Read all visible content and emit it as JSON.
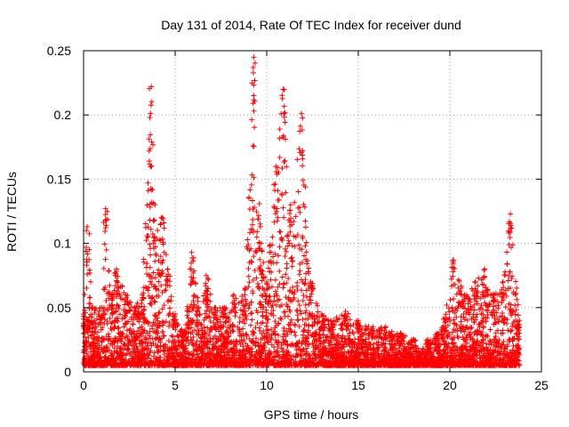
{
  "chart_data": {
    "type": "scatter",
    "title": "Day 131 of 2014, Rate Of TEC Index for receiver dund",
    "xlabel": "GPS time / hours",
    "ylabel": "ROTI / TECUs",
    "xlim": [
      0,
      25
    ],
    "ylim": [
      0,
      0.25
    ],
    "x_ticks": [
      0,
      5,
      10,
      15,
      20,
      25
    ],
    "x_tick_labels": [
      "0",
      "5",
      "10",
      "15",
      "20",
      "25"
    ],
    "y_ticks": [
      0,
      0.05,
      0.1,
      0.15,
      0.2,
      0.25
    ],
    "y_tick_labels": [
      "0",
      "0.05",
      "0.1",
      "0.15",
      "0.2",
      "0.25"
    ],
    "grid": true,
    "marker": "+",
    "color": "#ff0000",
    "data_range_x": [
      0,
      23.8
    ],
    "envelope": [
      {
        "x": 0.0,
        "y": 0.045
      },
      {
        "x": 0.2,
        "y": 0.113
      },
      {
        "x": 0.5,
        "y": 0.05
      },
      {
        "x": 1.0,
        "y": 0.05
      },
      {
        "x": 1.2,
        "y": 0.127
      },
      {
        "x": 1.5,
        "y": 0.06
      },
      {
        "x": 1.8,
        "y": 0.08
      },
      {
        "x": 2.3,
        "y": 0.06
      },
      {
        "x": 2.8,
        "y": 0.05
      },
      {
        "x": 3.2,
        "y": 0.06
      },
      {
        "x": 3.7,
        "y": 0.222
      },
      {
        "x": 3.9,
        "y": 0.13
      },
      {
        "x": 4.3,
        "y": 0.12
      },
      {
        "x": 4.6,
        "y": 0.08
      },
      {
        "x": 5.0,
        "y": 0.045
      },
      {
        "x": 5.5,
        "y": 0.03
      },
      {
        "x": 5.9,
        "y": 0.093
      },
      {
        "x": 6.3,
        "y": 0.05
      },
      {
        "x": 6.7,
        "y": 0.075
      },
      {
        "x": 7.2,
        "y": 0.05
      },
      {
        "x": 7.7,
        "y": 0.05
      },
      {
        "x": 8.2,
        "y": 0.06
      },
      {
        "x": 8.8,
        "y": 0.06
      },
      {
        "x": 9.3,
        "y": 0.245
      },
      {
        "x": 9.7,
        "y": 0.1
      },
      {
        "x": 10.0,
        "y": 0.07
      },
      {
        "x": 10.5,
        "y": 0.16
      },
      {
        "x": 10.9,
        "y": 0.22
      },
      {
        "x": 11.3,
        "y": 0.13
      },
      {
        "x": 11.9,
        "y": 0.201
      },
      {
        "x": 12.4,
        "y": 0.07
      },
      {
        "x": 13.0,
        "y": 0.045
      },
      {
        "x": 13.5,
        "y": 0.04
      },
      {
        "x": 14.3,
        "y": 0.047
      },
      {
        "x": 15.0,
        "y": 0.04
      },
      {
        "x": 15.8,
        "y": 0.035
      },
      {
        "x": 16.5,
        "y": 0.035
      },
      {
        "x": 17.3,
        "y": 0.03
      },
      {
        "x": 18.0,
        "y": 0.025
      },
      {
        "x": 18.4,
        "y": 0.015
      },
      {
        "x": 18.8,
        "y": 0.025
      },
      {
        "x": 19.3,
        "y": 0.03
      },
      {
        "x": 19.7,
        "y": 0.042
      },
      {
        "x": 20.2,
        "y": 0.087
      },
      {
        "x": 20.8,
        "y": 0.06
      },
      {
        "x": 21.4,
        "y": 0.07
      },
      {
        "x": 21.9,
        "y": 0.08
      },
      {
        "x": 22.4,
        "y": 0.06
      },
      {
        "x": 22.9,
        "y": 0.07
      },
      {
        "x": 23.3,
        "y": 0.123
      },
      {
        "x": 23.8,
        "y": 0.04
      }
    ]
  }
}
